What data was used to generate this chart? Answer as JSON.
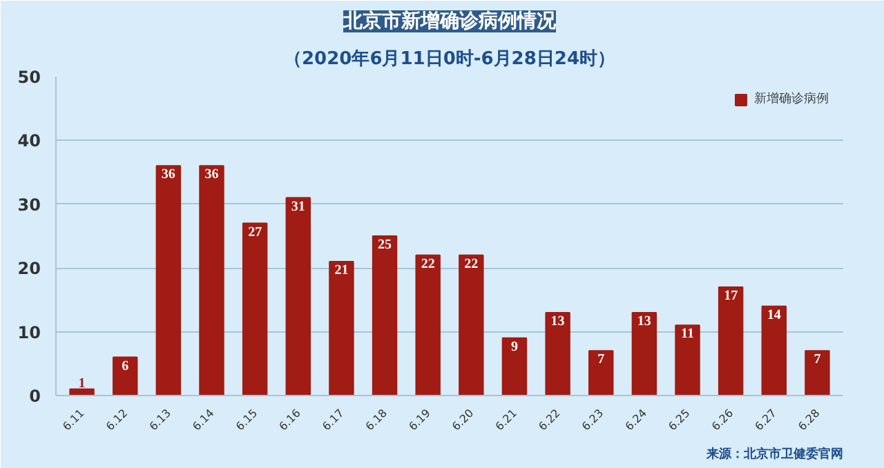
{
  "chart_data": {
    "type": "bar",
    "title": "北京市新增确诊病例情况",
    "subtitle": "（2020年6月11日0时-6月28日24时）",
    "categories": [
      "6.11",
      "6.12",
      "6.13",
      "6.14",
      "6.15",
      "6.16",
      "6.17",
      "6.18",
      "6.19",
      "6.20",
      "6.21",
      "6.22",
      "6.23",
      "6.24",
      "6.25",
      "6.26",
      "6.27",
      "6.28"
    ],
    "series": [
      {
        "name": "新增确诊病例",
        "color": "#a01c14",
        "values": [
          1,
          6,
          36,
          36,
          27,
          31,
          21,
          25,
          22,
          22,
          9,
          13,
          7,
          13,
          11,
          17,
          14,
          7
        ]
      }
    ],
    "ylim": [
      0,
      50
    ],
    "yticks": [
      0,
      10,
      20,
      30,
      40,
      50
    ],
    "grid": "y",
    "legend": "top right",
    "data_labels": true,
    "annotations": [
      "来源：北京市卫健委官网"
    ]
  }
}
